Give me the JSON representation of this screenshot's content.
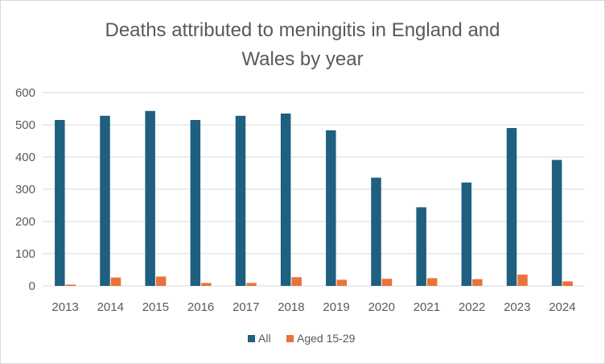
{
  "chart_data": {
    "type": "bar",
    "title_lines": [
      "Deaths attributed to meningitis in England and",
      "Wales by year"
    ],
    "categories": [
      "2013",
      "2014",
      "2015",
      "2016",
      "2017",
      "2018",
      "2019",
      "2020",
      "2021",
      "2022",
      "2023",
      "2024"
    ],
    "series": [
      {
        "name": "All",
        "color": "#1f5f7f",
        "values": [
          515,
          528,
          543,
          515,
          528,
          535,
          483,
          336,
          244,
          321,
          490,
          391
        ]
      },
      {
        "name": "Aged 15-29",
        "color": "#e9733a",
        "values": [
          4,
          26,
          29,
          9,
          9,
          27,
          19,
          22,
          24,
          21,
          35,
          14
        ]
      }
    ],
    "y_ticks": [
      "0",
      "100",
      "200",
      "300",
      "400",
      "500",
      "600"
    ],
    "ylim": [
      0,
      600
    ],
    "grid": true,
    "legend_position": "bottom"
  }
}
